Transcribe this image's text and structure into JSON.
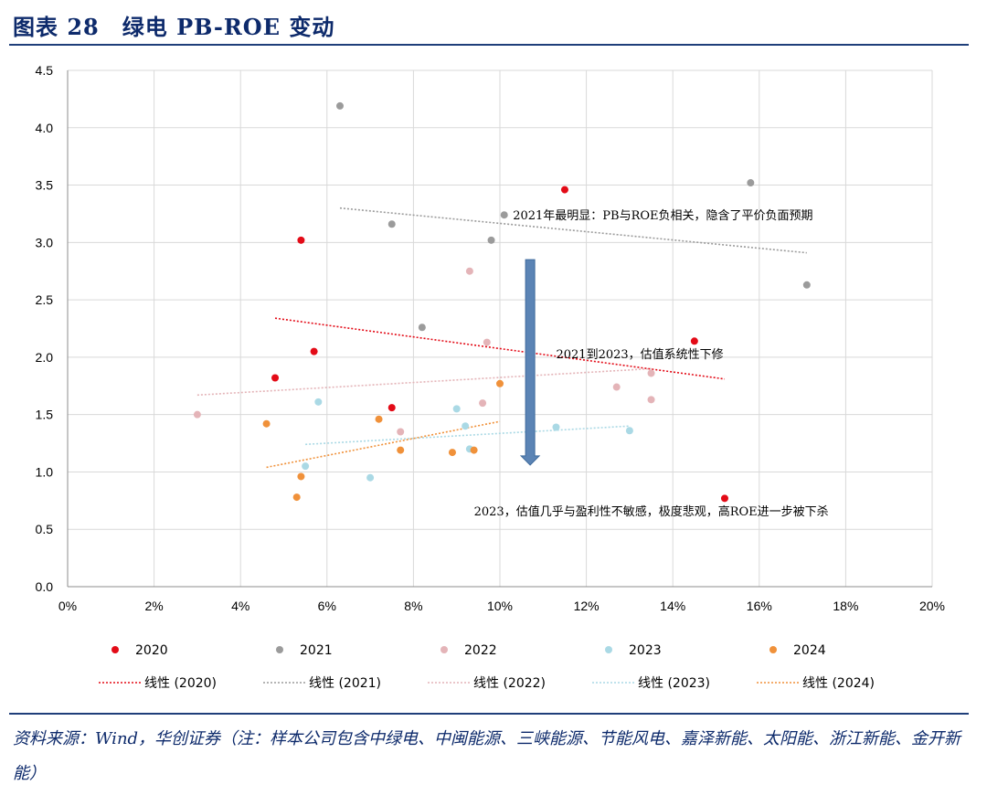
{
  "title": "图表 28　绿电 PB-ROE 变动",
  "source": "资料来源：Wind，华创证券（注：样本公司包含中绿电、中闽能源、三峡能源、节能风电、嘉泽新能、太阳能、浙江新能、金开新能）",
  "chart_data": {
    "type": "scatter",
    "title": "",
    "xlabel": "",
    "ylabel": "",
    "xlim": [
      0,
      0.2
    ],
    "ylim": [
      0,
      4.5
    ],
    "x_ticks": [
      "0%",
      "2%",
      "4%",
      "6%",
      "8%",
      "10%",
      "12%",
      "14%",
      "16%",
      "18%",
      "20%"
    ],
    "y_ticks": [
      "0.0",
      "0.5",
      "1.0",
      "1.5",
      "2.0",
      "2.5",
      "3.0",
      "3.5",
      "4.0",
      "4.5"
    ],
    "grid": true,
    "legend_placement": "bottom",
    "series": [
      {
        "name": "2020",
        "color": "#e30b17",
        "points": [
          [
            0.048,
            1.82
          ],
          [
            0.054,
            3.02
          ],
          [
            0.057,
            2.05
          ],
          [
            0.075,
            1.56
          ],
          [
            0.115,
            3.46
          ],
          [
            0.145,
            2.14
          ],
          [
            0.152,
            0.77
          ]
        ],
        "trend_label": "线性 (2020)",
        "trend": [
          [
            0.048,
            2.34
          ],
          [
            0.152,
            1.81
          ]
        ]
      },
      {
        "name": "2021",
        "color": "#9b9b9b",
        "points": [
          [
            0.063,
            4.19
          ],
          [
            0.075,
            3.16
          ],
          [
            0.082,
            2.26
          ],
          [
            0.098,
            3.02
          ],
          [
            0.101,
            3.24
          ],
          [
            0.158,
            3.52
          ],
          [
            0.171,
            2.63
          ]
        ],
        "trend_label": "线性 (2021)",
        "trend": [
          [
            0.063,
            3.3
          ],
          [
            0.171,
            2.91
          ]
        ]
      },
      {
        "name": "2022",
        "color": "#e4b4b8",
        "points": [
          [
            0.03,
            1.5
          ],
          [
            0.077,
            1.35
          ],
          [
            0.093,
            2.75
          ],
          [
            0.096,
            1.6
          ],
          [
            0.097,
            2.13
          ],
          [
            0.127,
            1.74
          ],
          [
            0.135,
            1.86
          ],
          [
            0.135,
            1.63
          ]
        ],
        "trend_label": "线性 (2022)",
        "trend": [
          [
            0.03,
            1.67
          ],
          [
            0.135,
            1.9
          ]
        ]
      },
      {
        "name": "2023",
        "color": "#aad9e5",
        "points": [
          [
            0.055,
            1.05
          ],
          [
            0.058,
            1.61
          ],
          [
            0.07,
            0.95
          ],
          [
            0.09,
            1.55
          ],
          [
            0.092,
            1.4
          ],
          [
            0.093,
            1.2
          ],
          [
            0.113,
            1.39
          ],
          [
            0.13,
            1.36
          ]
        ],
        "trend_label": "线性 (2023)",
        "trend": [
          [
            0.055,
            1.24
          ],
          [
            0.13,
            1.4
          ]
        ]
      },
      {
        "name": "2024",
        "color": "#f0913a",
        "points": [
          [
            0.046,
            1.42
          ],
          [
            0.053,
            0.78
          ],
          [
            0.054,
            0.96
          ],
          [
            0.072,
            1.46
          ],
          [
            0.077,
            1.19
          ],
          [
            0.089,
            1.17
          ],
          [
            0.094,
            1.19
          ],
          [
            0.1,
            1.77
          ]
        ],
        "trend_label": "线性 (2024)",
        "trend": [
          [
            0.046,
            1.04
          ],
          [
            0.1,
            1.44
          ]
        ]
      }
    ],
    "annotations": [
      {
        "text": "2021年最明显：PB与ROE负相关，隐含了平价负面预期",
        "x": 0.103,
        "y": 3.2
      },
      {
        "text": "2021到2023，估值系统性下修",
        "x": 0.113,
        "y": 1.99
      },
      {
        "text": "2023，估值几乎与盈利性不敏感，极度悲观，高ROE进一步被下杀",
        "x": 0.094,
        "y": 0.62
      }
    ],
    "arrow": {
      "x": 0.107,
      "y_from": 2.85,
      "y_to": 1.06,
      "color": "#5b84b5"
    }
  }
}
